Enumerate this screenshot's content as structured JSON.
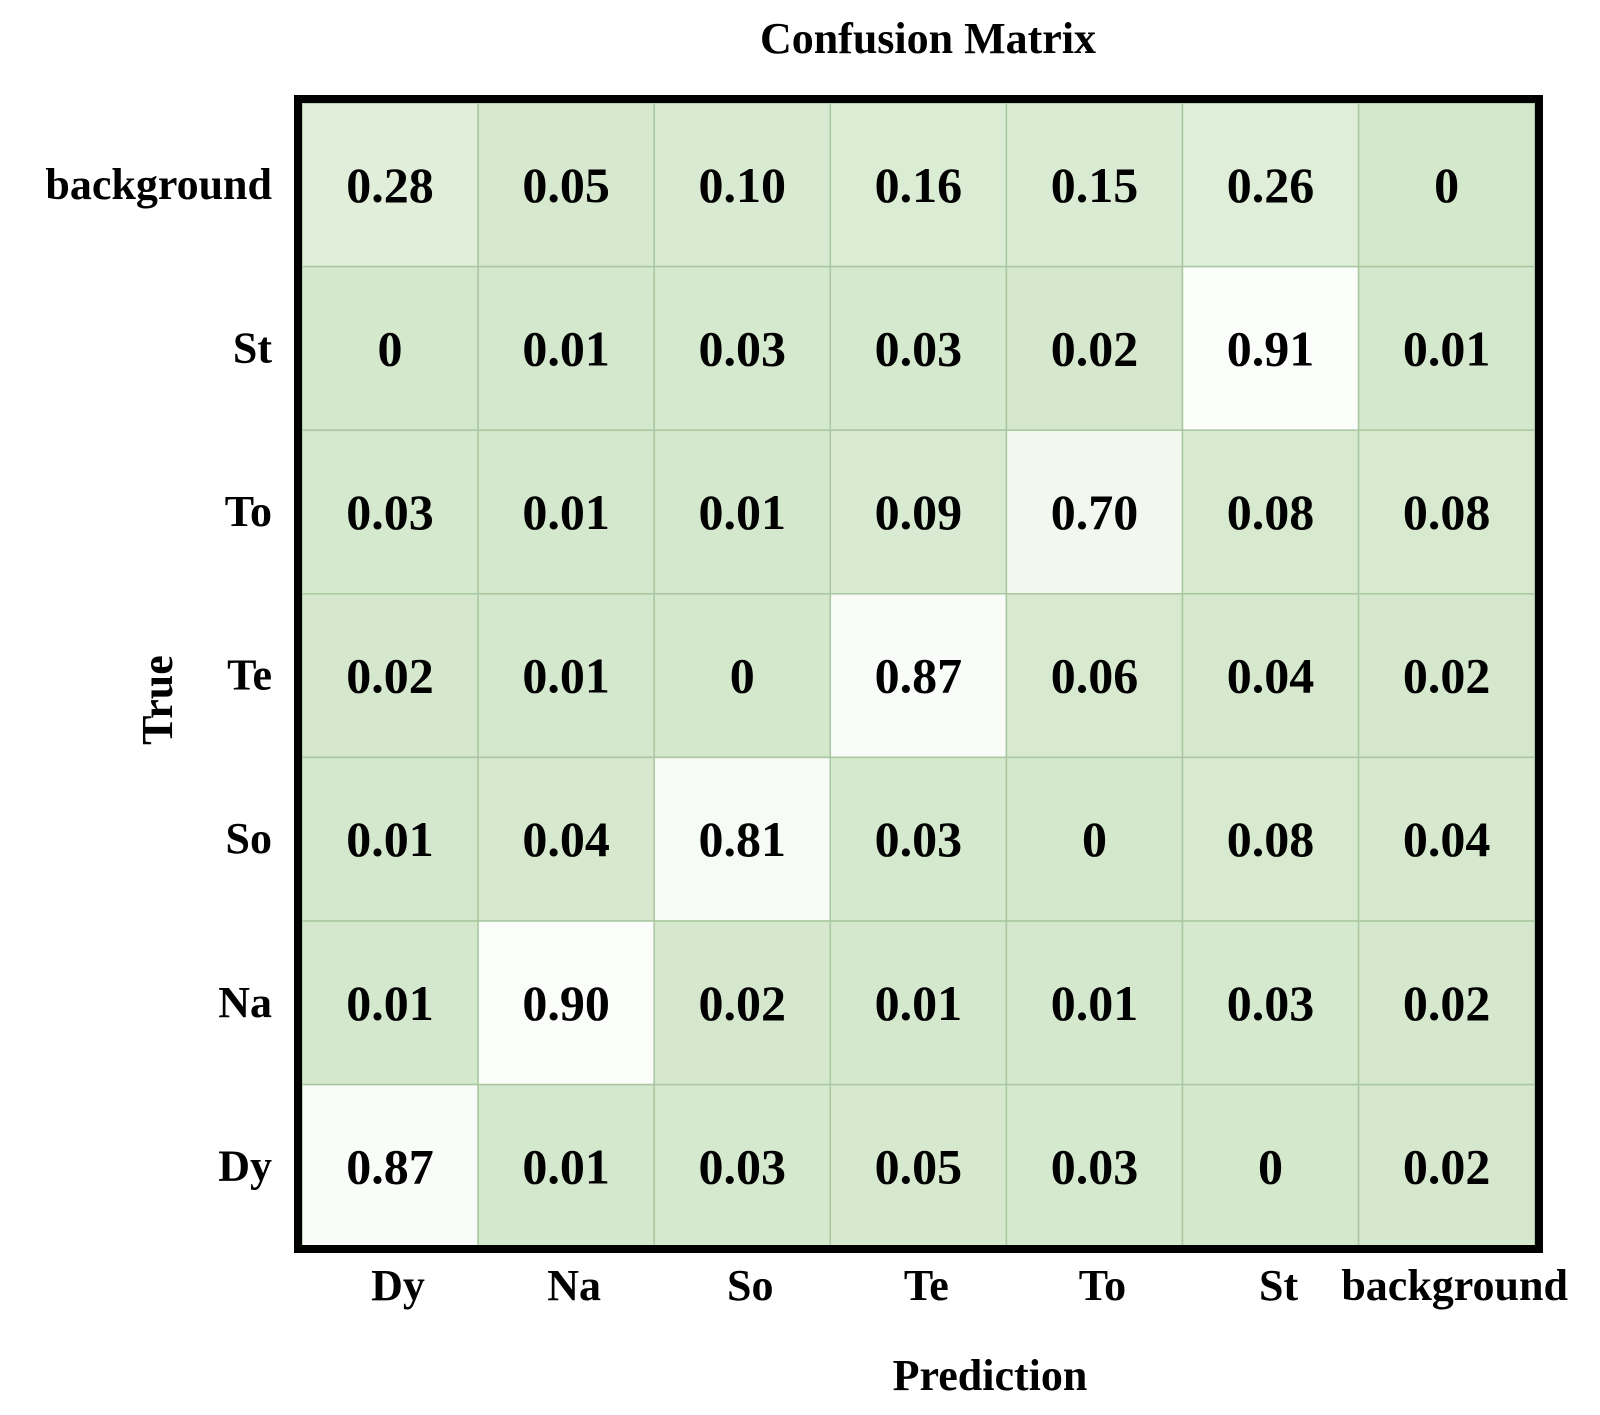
{
  "chart_data": {
    "type": "heatmap",
    "title": "Confusion Matrix",
    "xlabel": "Prediction",
    "ylabel": "True",
    "x_categories": [
      "Dy",
      "Na",
      "So",
      "Te",
      "To",
      "St",
      "background"
    ],
    "y_categories": [
      "background",
      "St",
      "To",
      "Te",
      "So",
      "Na",
      "Dy"
    ],
    "values": [
      [
        "0.28",
        "0.05",
        "0.10",
        "0.16",
        "0.15",
        "0.26",
        "0"
      ],
      [
        "0",
        "0.01",
        "0.03",
        "0.03",
        "0.02",
        "0.91",
        "0.01"
      ],
      [
        "0.03",
        "0.01",
        "0.01",
        "0.09",
        "0.70",
        "0.08",
        "0.08"
      ],
      [
        "0.02",
        "0.01",
        "0",
        "0.87",
        "0.06",
        "0.04",
        "0.02"
      ],
      [
        "0.01",
        "0.04",
        "0.81",
        "0.03",
        "0",
        "0.08",
        "0.04"
      ],
      [
        "0.01",
        "0.90",
        "0.02",
        "0.01",
        "0.01",
        "0.03",
        "0.02"
      ],
      [
        "0.87",
        "0.01",
        "0.03",
        "0.05",
        "0.03",
        "0",
        "0.02"
      ]
    ],
    "colors": {
      "min": "#d4e8cc",
      "max": "#ffffff",
      "gridline": "#a9c7a0",
      "border": "#000000",
      "text": "#000000"
    }
  }
}
